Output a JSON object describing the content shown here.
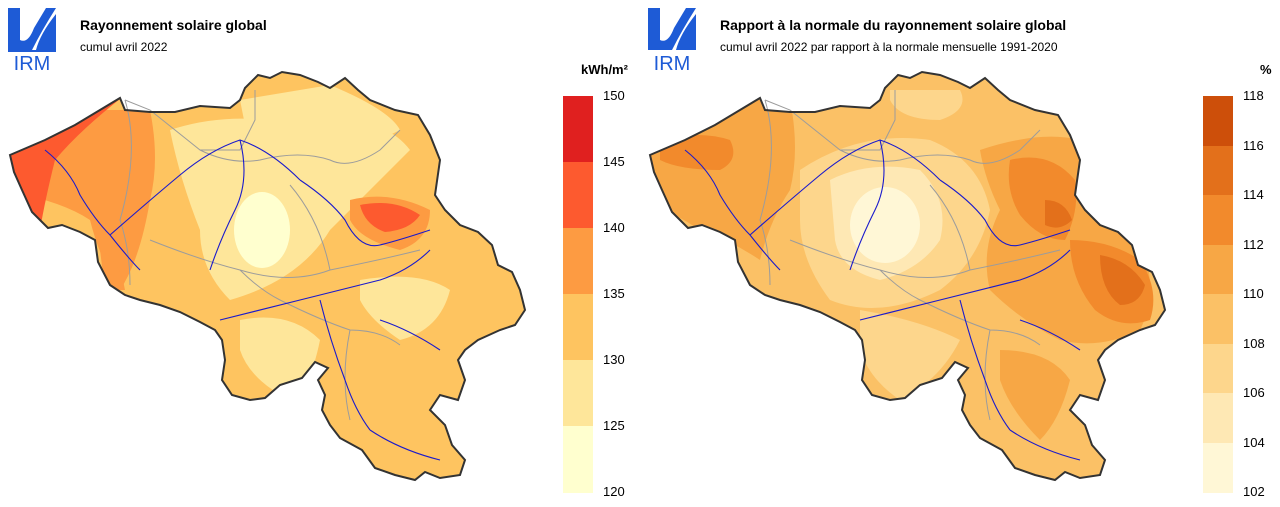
{
  "left_panel": {
    "logo_text": "IRM",
    "title": "Rayonnement solaire global",
    "subtitle": "cumul avril 2022",
    "legend": {
      "unit": "kWh/m²",
      "ticks": [
        "150",
        "145",
        "140",
        "135",
        "130",
        "125",
        "120"
      ],
      "bins": [
        {
          "color": "#e0201f"
        },
        {
          "color": "#fd5a2f"
        },
        {
          "color": "#fd9b42"
        },
        {
          "color": "#fec460"
        },
        {
          "color": "#fee69a"
        },
        {
          "color": "#ffffcf"
        }
      ]
    },
    "map_colors": {
      "dominant": "#fec460",
      "high": "#fd9b42",
      "higher": "#fd5a2f",
      "low": "#fee69a",
      "lowest": "#ffffcf"
    }
  },
  "right_panel": {
    "logo_text": "IRM",
    "title": "Rapport à la normale du rayonnement solaire global",
    "subtitle": "cumul avril 2022 par rapport à la normale mensuelle 1991-2020",
    "legend": {
      "unit": "%",
      "ticks": [
        "118",
        "116",
        "114",
        "112",
        "110",
        "108",
        "106",
        "104",
        "102"
      ],
      "bins": [
        {
          "color": "#cd4f0a"
        },
        {
          "color": "#e3701b"
        },
        {
          "color": "#f28a2c"
        },
        {
          "color": "#f7a745"
        },
        {
          "color": "#fbc166"
        },
        {
          "color": "#fdd68c"
        },
        {
          "color": "#fee8b4"
        },
        {
          "color": "#fff7d6"
        }
      ]
    },
    "map_colors": {
      "dominant": "#fbc166",
      "high": "#f7a745",
      "higher": "#f28a2c",
      "low": "#fdd68c",
      "lowest": "#fff7d6"
    }
  },
  "style": {
    "border": "#333333",
    "rivers": "#1a1acc",
    "provinces": "#9c9c9c",
    "logo_blue": "#1e5bd6"
  }
}
